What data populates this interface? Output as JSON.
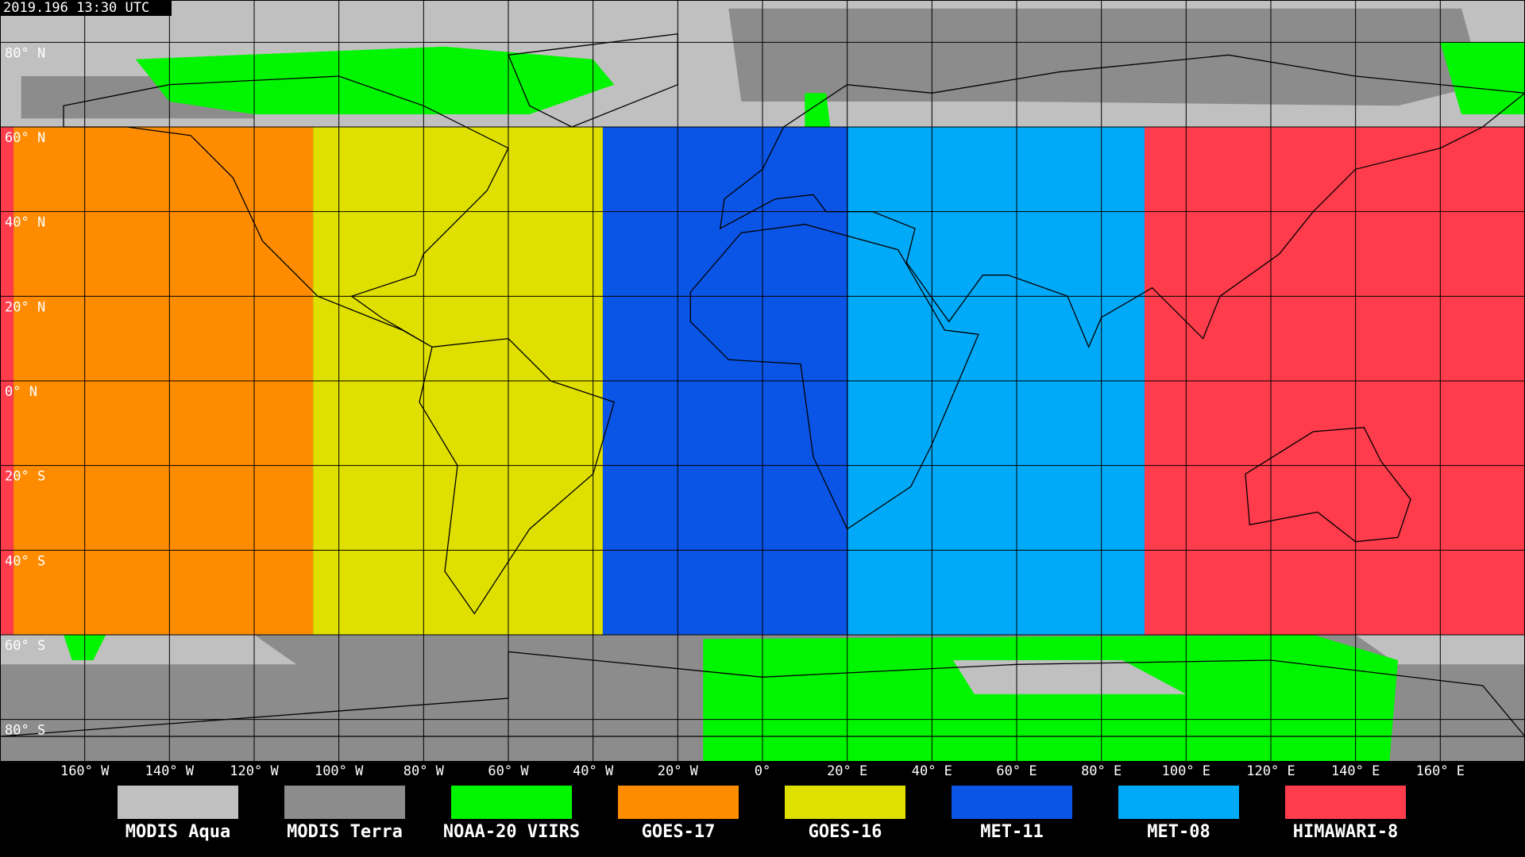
{
  "timestamp": "2019.196 13:30 UTC",
  "lat_labels": [
    "80° N",
    "60° N",
    "40° N",
    "20° N",
    "0° N",
    "20° S",
    "40° S",
    "60° S",
    "80° S"
  ],
  "lon_labels": [
    "160° W",
    "140° W",
    "120° W",
    "100° W",
    "80° W",
    "60° W",
    "40° W",
    "20° W",
    "0°",
    "20° E",
    "40° E",
    "60° E",
    "80° E",
    "100° E",
    "120° E",
    "140° E",
    "160° E"
  ],
  "legend": [
    {
      "name": "MODIS Aqua",
      "color": "#c0c0c0"
    },
    {
      "name": "MODIS Terra",
      "color": "#8c8c8c"
    },
    {
      "name": "NOAA-20 VIIRS",
      "color": "#00f500"
    },
    {
      "name": "GOES-17",
      "color": "#ff8c00"
    },
    {
      "name": "GOES-16",
      "color": "#e0e000"
    },
    {
      "name": "MET-11",
      "color": "#0a55e6"
    },
    {
      "name": "MET-08",
      "color": "#00aaf8"
    },
    {
      "name": "HIMAWARI-8",
      "color": "#ff3c4c"
    }
  ]
}
